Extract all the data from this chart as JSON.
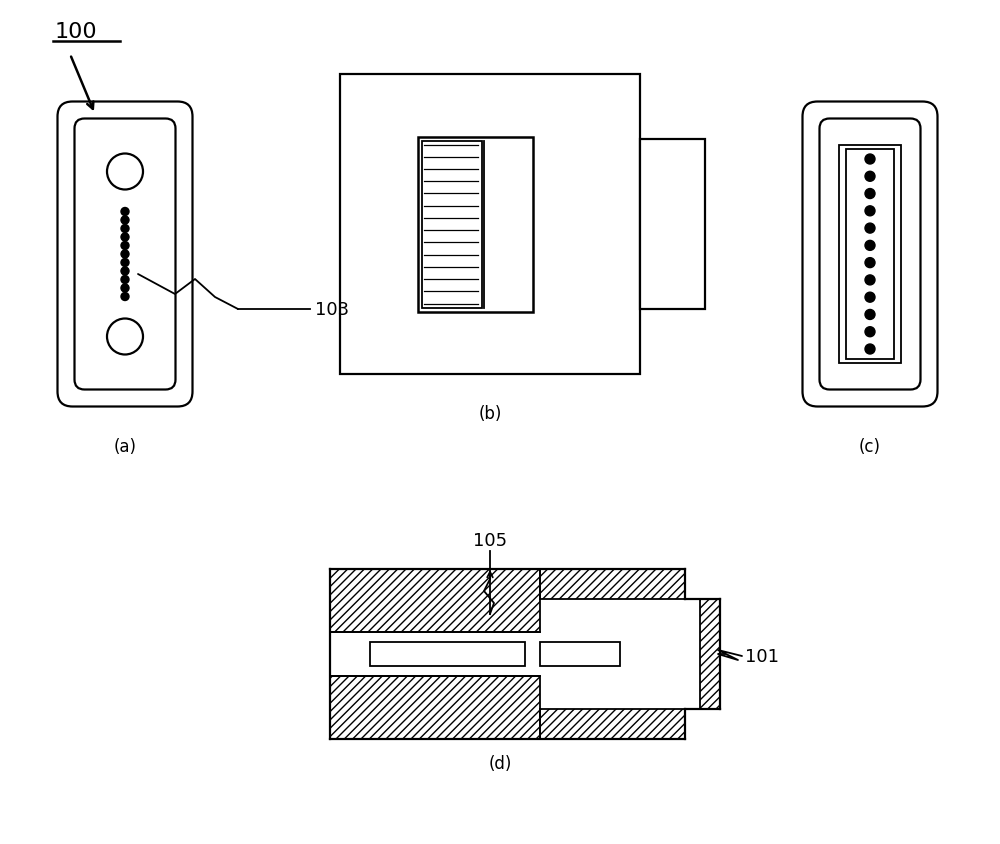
{
  "bg_color": "#ffffff",
  "line_color": "#000000",
  "label_100": "100",
  "label_103": "103",
  "label_101": "101",
  "label_105": "105",
  "label_a": "(a)",
  "label_b": "(b)",
  "label_c": "(c)",
  "label_d": "(d)",
  "lw": 1.3
}
